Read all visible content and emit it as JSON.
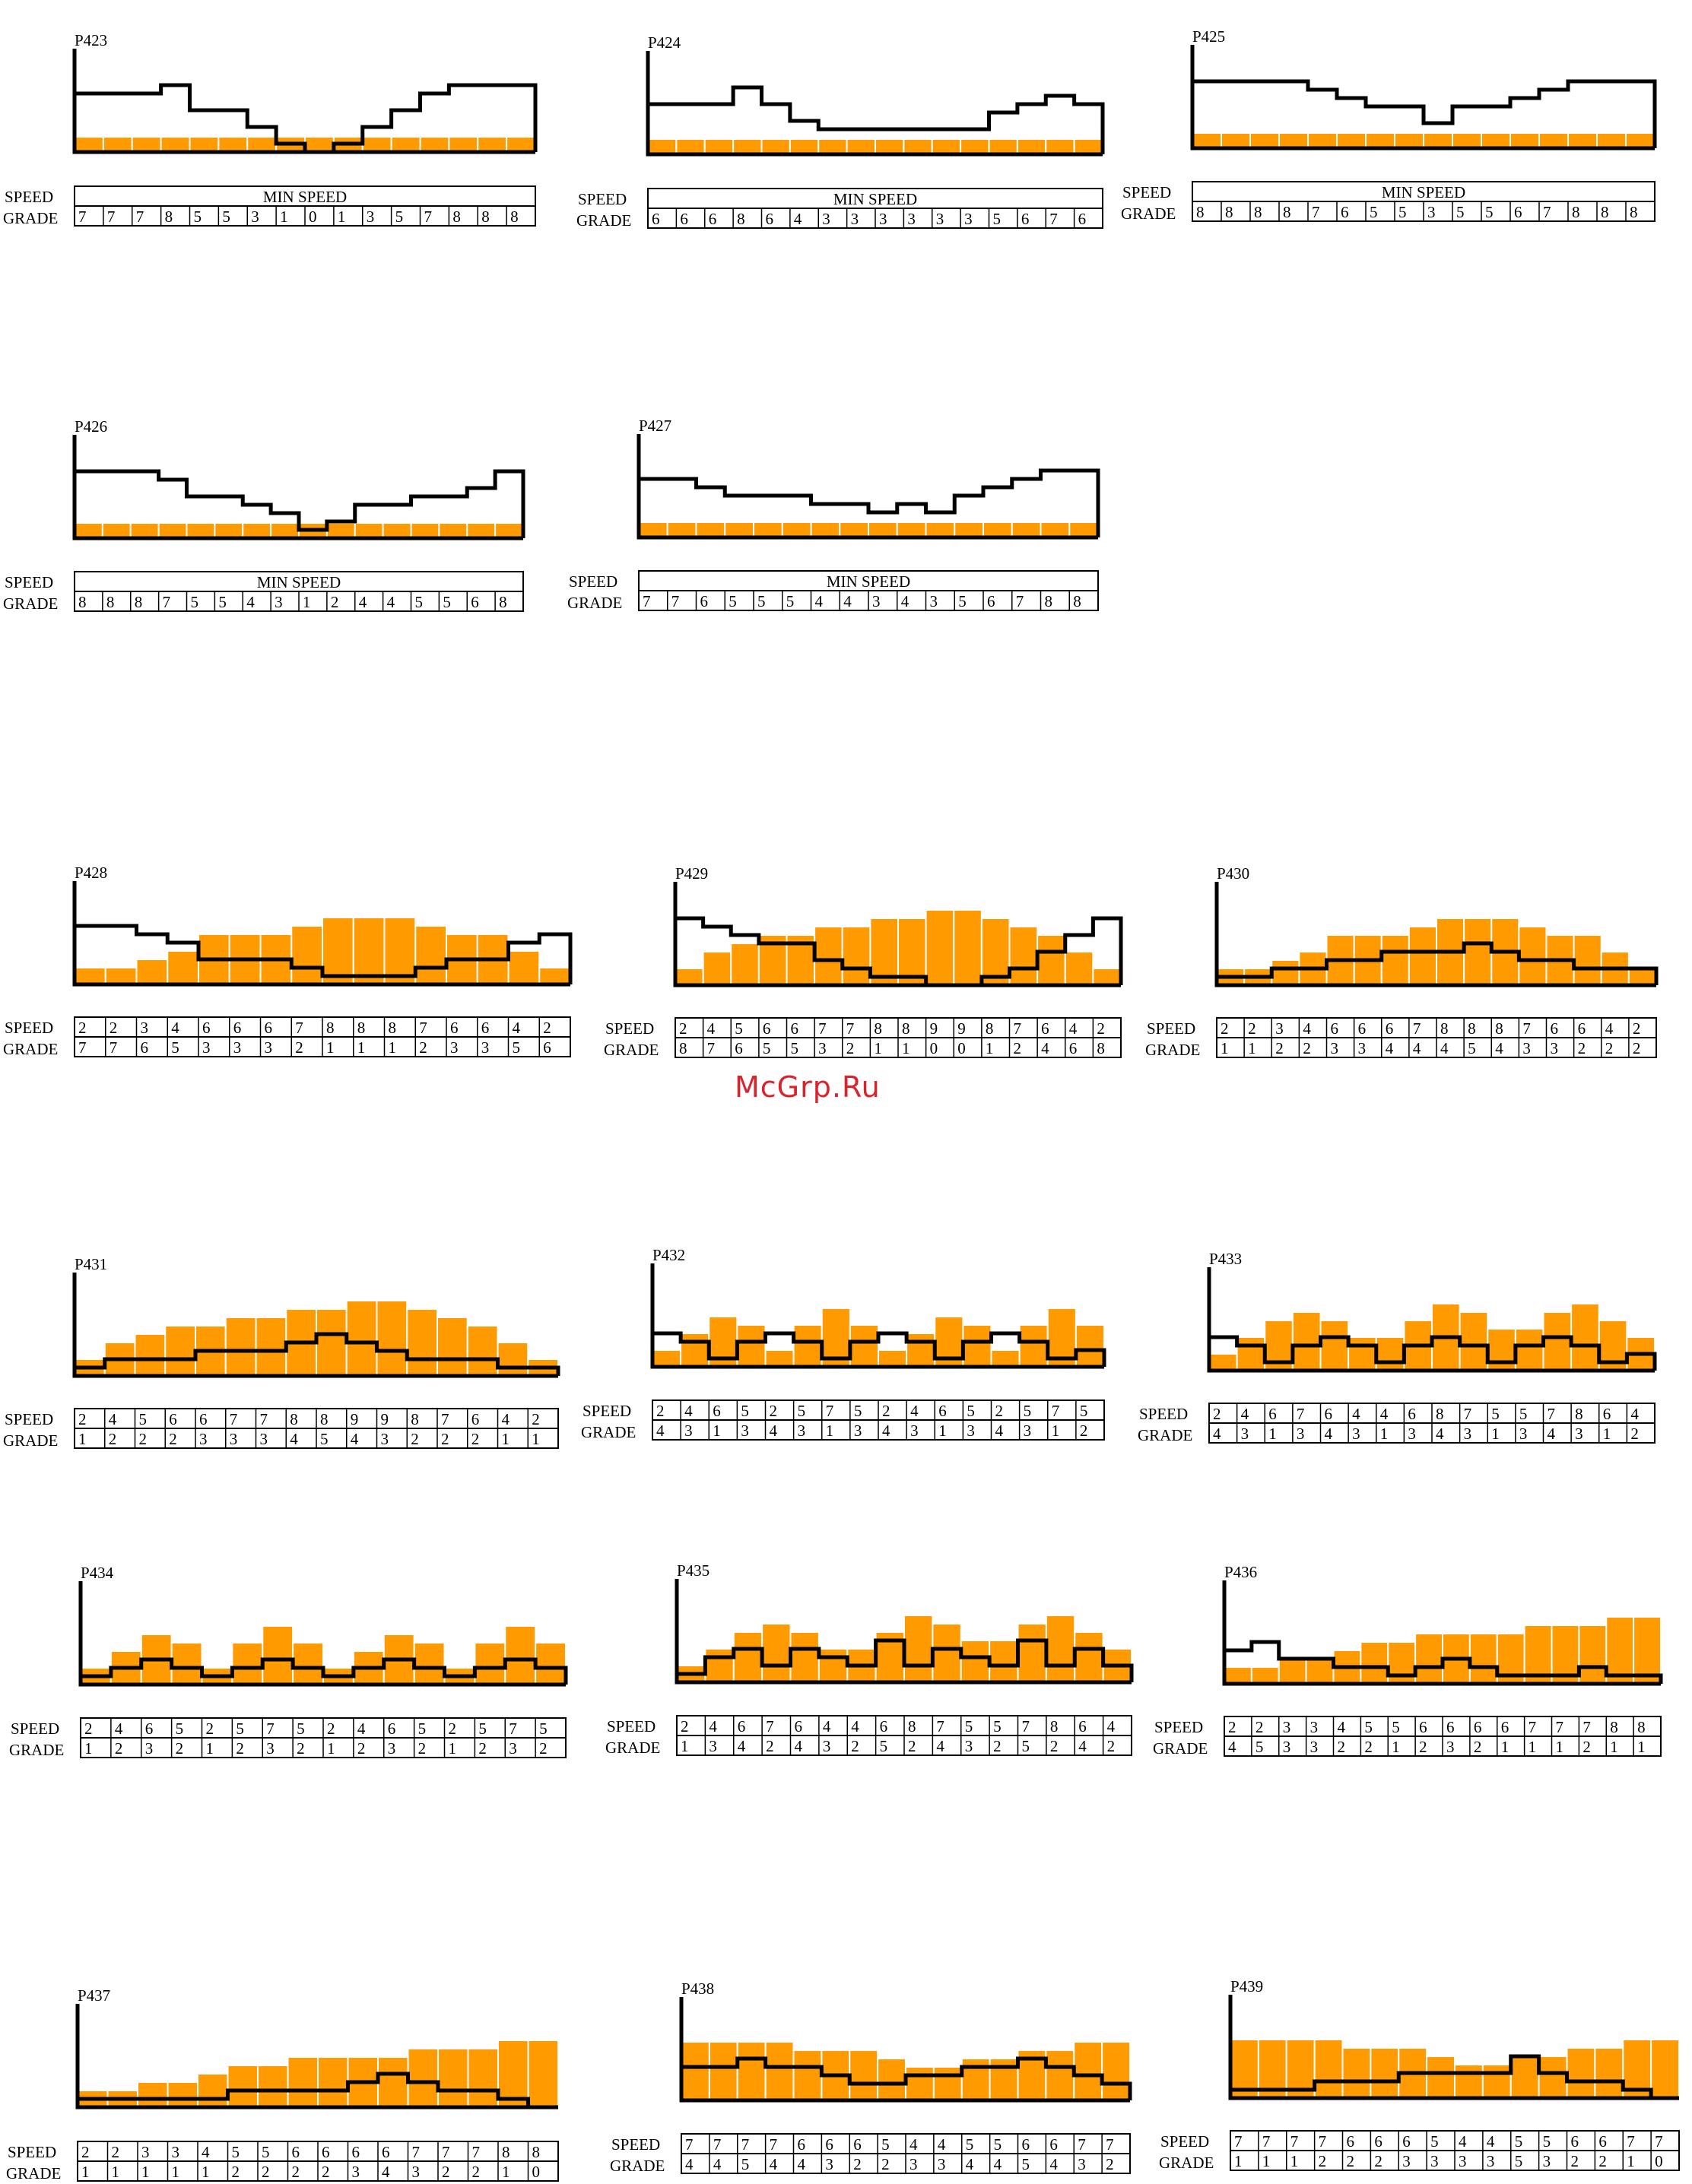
{
  "watermark": "McGrp.Ru",
  "row_labels": {
    "speed": "SPEED",
    "grade": "GRADE"
  },
  "colors": {
    "fill": "#ff9a00",
    "line": "#000000",
    "cell_divider": "#ffffff"
  },
  "chart_data": [
    {
      "name": "P423",
      "type": "bar",
      "min_speed": true,
      "speed_text": "MIN SPEED",
      "speed": [],
      "grade": [
        7,
        7,
        7,
        8,
        5,
        5,
        3,
        1,
        0,
        1,
        3,
        5,
        7,
        8,
        8,
        8
      ]
    },
    {
      "name": "P424",
      "type": "bar",
      "min_speed": true,
      "speed_text": "MIN SPEED",
      "speed": [],
      "grade": [
        6,
        6,
        6,
        8,
        6,
        4,
        3,
        3,
        3,
        3,
        3,
        3,
        5,
        6,
        7,
        6
      ]
    },
    {
      "name": "P425",
      "type": "bar",
      "min_speed": true,
      "speed_text": "MIN SPEED",
      "speed": [],
      "grade": [
        8,
        8,
        8,
        8,
        7,
        6,
        5,
        5,
        3,
        5,
        5,
        6,
        7,
        8,
        8,
        8
      ]
    },
    {
      "name": "P426",
      "type": "bar",
      "min_speed": true,
      "speed_text": "MIN SPEED",
      "speed": [],
      "grade": [
        8,
        8,
        8,
        7,
        5,
        5,
        4,
        3,
        1,
        2,
        4,
        4,
        5,
        5,
        6,
        8
      ]
    },
    {
      "name": "P427",
      "type": "bar",
      "min_speed": true,
      "speed_text": "MIN SPEED",
      "speed": [],
      "grade": [
        7,
        7,
        6,
        5,
        5,
        5,
        4,
        4,
        3,
        4,
        3,
        5,
        6,
        7,
        8,
        8
      ]
    },
    {
      "name": "P428",
      "type": "bar",
      "min_speed": false,
      "speed_text": "",
      "speed": [
        2,
        2,
        3,
        4,
        6,
        6,
        6,
        7,
        8,
        8,
        8,
        7,
        6,
        6,
        4,
        2
      ],
      "grade": [
        7,
        7,
        6,
        5,
        3,
        3,
        3,
        2,
        1,
        1,
        1,
        2,
        3,
        3,
        5,
        6
      ]
    },
    {
      "name": "P429",
      "type": "bar",
      "min_speed": false,
      "speed_text": "",
      "speed": [
        2,
        4,
        5,
        6,
        6,
        7,
        7,
        8,
        8,
        9,
        9,
        8,
        7,
        6,
        4,
        2
      ],
      "grade": [
        8,
        7,
        6,
        5,
        5,
        3,
        2,
        1,
        1,
        0,
        0,
        1,
        2,
        4,
        6,
        8
      ]
    },
    {
      "name": "P430",
      "type": "bar",
      "min_speed": false,
      "speed_text": "",
      "speed": [
        2,
        2,
        3,
        4,
        6,
        6,
        6,
        7,
        8,
        8,
        8,
        7,
        6,
        6,
        4,
        2
      ],
      "grade": [
        1,
        1,
        2,
        2,
        3,
        3,
        4,
        4,
        4,
        5,
        4,
        3,
        3,
        2,
        2,
        2
      ]
    },
    {
      "name": "P431",
      "type": "bar",
      "min_speed": false,
      "speed_text": "",
      "speed": [
        2,
        4,
        5,
        6,
        6,
        7,
        7,
        8,
        8,
        9,
        9,
        8,
        7,
        6,
        4,
        2
      ],
      "grade": [
        1,
        2,
        2,
        2,
        3,
        3,
        3,
        4,
        5,
        4,
        3,
        2,
        2,
        2,
        1,
        1
      ]
    },
    {
      "name": "P432",
      "type": "bar",
      "min_speed": false,
      "speed_text": "",
      "speed": [
        2,
        4,
        6,
        5,
        2,
        5,
        7,
        5,
        2,
        4,
        6,
        5,
        2,
        5,
        7,
        5
      ],
      "grade": [
        4,
        3,
        1,
        3,
        4,
        3,
        1,
        3,
        4,
        3,
        1,
        3,
        4,
        3,
        1,
        2
      ]
    },
    {
      "name": "P433",
      "type": "bar",
      "min_speed": false,
      "speed_text": "",
      "speed": [
        2,
        4,
        6,
        7,
        6,
        4,
        4,
        6,
        8,
        7,
        5,
        5,
        7,
        8,
        6,
        4
      ],
      "grade": [
        4,
        3,
        1,
        3,
        4,
        3,
        1,
        3,
        4,
        3,
        1,
        3,
        4,
        3,
        1,
        2
      ]
    },
    {
      "name": "P434",
      "type": "bar",
      "min_speed": false,
      "speed_text": "",
      "speed": [
        2,
        4,
        6,
        5,
        2,
        5,
        7,
        5,
        2,
        4,
        6,
        5,
        2,
        5,
        7,
        5
      ],
      "grade": [
        1,
        2,
        3,
        2,
        1,
        2,
        3,
        2,
        1,
        2,
        3,
        2,
        1,
        2,
        3,
        2
      ]
    },
    {
      "name": "P435",
      "type": "bar",
      "min_speed": false,
      "speed_text": "",
      "speed": [
        2,
        4,
        6,
        7,
        6,
        4,
        4,
        6,
        8,
        7,
        5,
        5,
        7,
        8,
        6,
        4
      ],
      "grade": [
        1,
        3,
        4,
        2,
        4,
        3,
        2,
        5,
        2,
        4,
        3,
        2,
        5,
        2,
        4,
        2
      ]
    },
    {
      "name": "P436",
      "type": "bar",
      "min_speed": false,
      "speed_text": "",
      "speed": [
        2,
        2,
        3,
        3,
        4,
        5,
        5,
        6,
        6,
        6,
        6,
        7,
        7,
        7,
        8,
        8
      ],
      "grade": [
        4,
        5,
        3,
        3,
        2,
        2,
        1,
        2,
        3,
        2,
        1,
        1,
        1,
        2,
        1,
        1
      ]
    },
    {
      "name": "P437",
      "type": "bar",
      "min_speed": false,
      "speed_text": "",
      "speed": [
        2,
        2,
        3,
        3,
        4,
        5,
        5,
        6,
        6,
        6,
        6,
        7,
        7,
        7,
        8,
        8
      ],
      "grade": [
        1,
        1,
        1,
        1,
        1,
        2,
        2,
        2,
        2,
        3,
        4,
        3,
        2,
        2,
        1,
        0
      ]
    },
    {
      "name": "P438",
      "type": "bar",
      "min_speed": false,
      "speed_text": "",
      "speed": [
        7,
        7,
        7,
        7,
        6,
        6,
        6,
        5,
        4,
        4,
        5,
        5,
        6,
        6,
        7,
        7
      ],
      "grade": [
        4,
        4,
        5,
        4,
        4,
        3,
        2,
        2,
        3,
        3,
        4,
        4,
        5,
        4,
        3,
        2
      ]
    },
    {
      "name": "P439",
      "type": "bar",
      "min_speed": false,
      "speed_text": "",
      "speed": [
        7,
        7,
        7,
        7,
        6,
        6,
        6,
        5,
        4,
        4,
        5,
        5,
        6,
        6,
        7,
        7
      ],
      "grade": [
        1,
        1,
        1,
        2,
        2,
        2,
        3,
        3,
        3,
        3,
        5,
        3,
        2,
        2,
        1,
        0
      ]
    }
  ]
}
